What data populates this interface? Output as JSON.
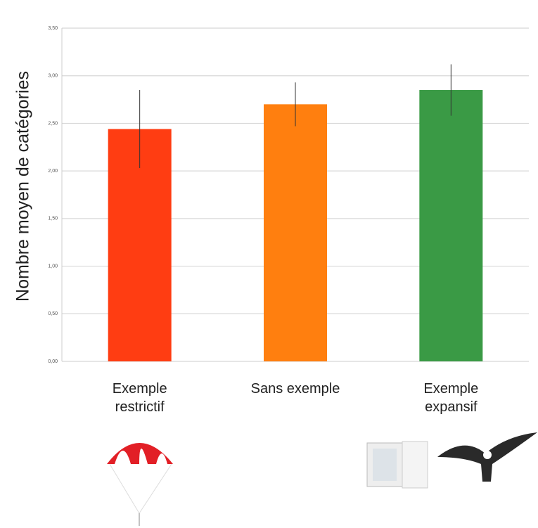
{
  "chart_data": {
    "type": "bar",
    "y_label": "Nombre moyen de catégories",
    "categories": [
      "Exemple restrictif",
      "Sans exemple",
      "Exemple expansif"
    ],
    "series": [
      {
        "values": [
          2.44,
          2.7,
          2.85
        ],
        "errors": [
          0.41,
          0.23,
          0.27
        ],
        "colors": [
          "#ff3d12",
          "#ff7f0f",
          "#3a9a45"
        ]
      }
    ],
    "ylim": [
      0,
      3.5
    ],
    "yticks": [
      {
        "value": 0,
        "label": "0,00"
      },
      {
        "value": 0.5,
        "label": "0,50"
      },
      {
        "value": 1,
        "label": "1,00"
      },
      {
        "value": 1.5,
        "label": "1,50"
      },
      {
        "value": 2,
        "label": "2,00"
      },
      {
        "value": 2.5,
        "label": "2,50"
      },
      {
        "value": 3,
        "label": "3,00"
      },
      {
        "value": 3.5,
        "label": "3,50"
      }
    ],
    "grid": true
  }
}
